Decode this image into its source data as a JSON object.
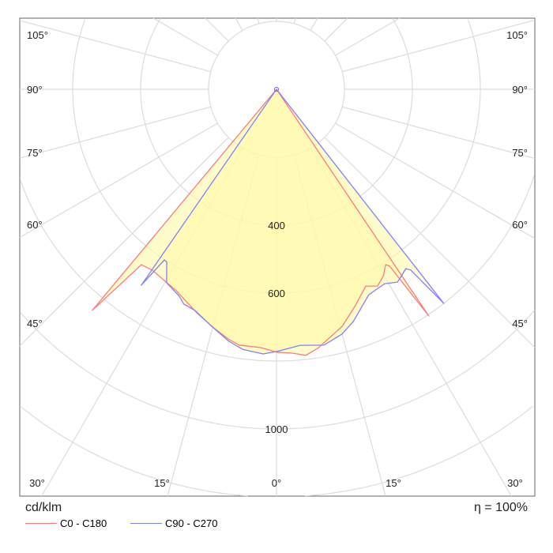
{
  "chart_data": {
    "type": "polar",
    "unit_label": "cd/klm",
    "efficiency_label": "η = 100%",
    "radial_ticks": [
      200,
      400,
      600,
      800,
      1000,
      1200
    ],
    "radial_tick_labels": [
      "400",
      "600",
      "1000"
    ],
    "radial_tick_label_values": [
      400,
      600,
      1000
    ],
    "angle_grid_step_deg": 15,
    "angle_labels": {
      "left": [
        "105°",
        "90°",
        "75°",
        "60°",
        "45°"
      ],
      "right": [
        "105°",
        "90°",
        "75°",
        "60°",
        "45°"
      ],
      "bottom": [
        "30°",
        "15°",
        "0°",
        "15°",
        "30°"
      ]
    },
    "grid": true,
    "fill_color": "#fffaa8",
    "series": [
      {
        "name": "C0 - C180",
        "color": "#ff7a7a",
        "points": [
          [
            -39.8,
            0
          ],
          [
            -39.8,
            847
          ],
          [
            -37.6,
            652
          ],
          [
            -34.4,
            646
          ],
          [
            -29.8,
            654
          ],
          [
            -26.5,
            662
          ],
          [
            -19.4,
            700
          ],
          [
            -14.8,
            726
          ],
          [
            -10.7,
            750
          ],
          [
            -8.3,
            761
          ],
          [
            -3.5,
            762
          ],
          [
            0,
            774
          ],
          [
            3.4,
            778
          ],
          [
            6.3,
            788
          ],
          [
            9.2,
            771
          ],
          [
            15.5,
            724
          ],
          [
            20.0,
            678
          ],
          [
            24.4,
            636
          ],
          [
            27.2,
            651
          ],
          [
            29.7,
            634
          ],
          [
            31.9,
            608
          ],
          [
            32.6,
            618
          ],
          [
            33.9,
            804
          ],
          [
            33.9,
            0
          ]
        ]
      },
      {
        "name": "C90 - C270",
        "color": "#8080ff",
        "points": [
          [
            -34.6,
            0
          ],
          [
            -34.6,
            701
          ],
          [
            -33.3,
            601
          ],
          [
            -32.4,
            603
          ],
          [
            -29.6,
            655
          ],
          [
            -25.2,
            673
          ],
          [
            -23.3,
            689
          ],
          [
            -20.2,
            694
          ],
          [
            -15.5,
            722
          ],
          [
            -10.7,
            755
          ],
          [
            -7.4,
            772
          ],
          [
            -2.9,
            780
          ],
          [
            0,
            772
          ],
          [
            5.3,
            757
          ],
          [
            10.5,
            766
          ],
          [
            15.0,
            746
          ],
          [
            18.3,
            720
          ],
          [
            24.2,
            663
          ],
          [
            29.1,
            655
          ],
          [
            32.1,
            670
          ],
          [
            34.1,
            660
          ],
          [
            35.8,
            651
          ],
          [
            36.6,
            663
          ],
          [
            38.0,
            800
          ],
          [
            38.0,
            0
          ]
        ]
      }
    ]
  }
}
